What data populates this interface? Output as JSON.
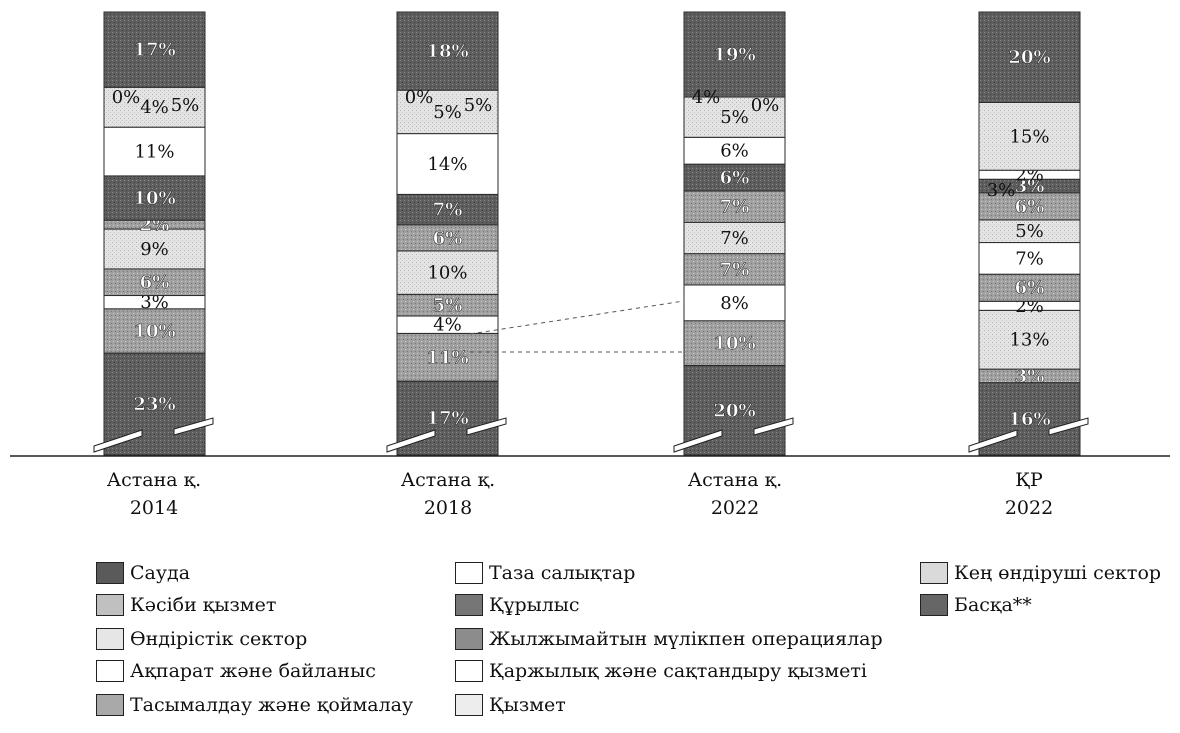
{
  "chart_data": {
    "type": "bar",
    "stacked": true,
    "normalized_to_100": true,
    "categories": [
      "Астана қ.\n2014",
      "Астана қ.\n2018",
      "Астана қ.\n2022",
      "ҚР\n2022"
    ],
    "category_lines": [
      [
        "Астана қ.",
        "2014"
      ],
      [
        "Астана қ.",
        "2018"
      ],
      [
        "Астана қ.",
        "2022"
      ],
      [
        "ҚР",
        "2022"
      ]
    ],
    "series_order_bottom_to_top": [
      "Сауда",
      "Тасымалдау және қоймалау",
      "Кең өндіруші сектор",
      "Ақпарат және байланыс",
      "Кәсіби қызмет",
      "Қаржылық және сақтандыру қызметі",
      "Өндірістік сектор",
      "Жылжымайтын мүлікпен операциялар",
      "Құрылыс",
      "Таза салықтар",
      "Қызмет",
      "Басқа**"
    ],
    "series": [
      {
        "name": "Сауда",
        "color": "#5a5a5a",
        "pattern": "dark",
        "values": [
          23,
          17,
          20,
          16
        ]
      },
      {
        "name": "Тасымалдау және қоймалау",
        "color": "#a9a9a9",
        "pattern": "medium",
        "values": [
          10,
          11,
          10,
          3
        ]
      },
      {
        "name": "Кең өндіруші сектор",
        "color": "#dadada",
        "pattern": "light",
        "values": [
          0,
          0,
          0,
          13
        ]
      },
      {
        "name": "Ақпарат және байланыс",
        "color": "#ffffff",
        "pattern": "white",
        "values": [
          3,
          4,
          8,
          2
        ]
      },
      {
        "name": "Кәсіби қызмет",
        "color": "#c0c0c0",
        "pattern": "medium",
        "values": [
          6,
          5,
          7,
          6
        ]
      },
      {
        "name": "Қаржылық және сақтандыру қызметі",
        "color": "#ffffff",
        "pattern": "white",
        "values": [
          0,
          0,
          0,
          7
        ]
      },
      {
        "name": "Өндірістік сектор",
        "color": "#e6e6e6",
        "pattern": "light",
        "values": [
          9,
          10,
          7,
          5
        ]
      },
      {
        "name": "Жылжымайтын мүлікпен операциялар",
        "color": "#8c8c8c",
        "pattern": "medium",
        "values": [
          2,
          6,
          7,
          6
        ]
      },
      {
        "name": "Құрылыс",
        "color": "#767676",
        "pattern": "dark",
        "values": [
          10,
          7,
          6,
          3
        ]
      },
      {
        "name": "Таза салықтар",
        "color": "#ffffff",
        "pattern": "white",
        "values": [
          11,
          14,
          6,
          2
        ]
      },
      {
        "name": "Қызмет",
        "color": "#ededed",
        "pattern": "light",
        "values": [
          9,
          10,
          9,
          15
        ]
      },
      {
        "name": "Басқа**",
        "color": "#666666",
        "pattern": "dark",
        "values": [
          17,
          18,
          19,
          20
        ]
      }
    ],
    "segment_labels": [
      [
        "23%",
        "10%",
        "",
        "3%",
        "6%",
        "",
        "9%",
        "2%",
        "10%",
        "11%",
        "4%",
        "17%"
      ],
      [
        "17%",
        "11%",
        "",
        "4%",
        "5%",
        "",
        "10%",
        "6%",
        "7%",
        "14%",
        "5%",
        "18%"
      ],
      [
        "20%",
        "10%",
        "",
        "8%",
        "7%",
        "",
        "7%",
        "7%",
        "6%",
        "6%",
        "5%",
        "19%"
      ],
      [
        "16%",
        "3%",
        "13%",
        "2%",
        "6%",
        "7%",
        "5%",
        "6%",
        "3%",
        "2%",
        "15%",
        "20%"
      ]
    ],
    "extra_labels": [
      [
        "0%",
        "5%"
      ],
      [
        "0%",
        "5%"
      ],
      [
        "4%",
        "0%"
      ],
      [
        "3%"
      ]
    ],
    "legend": {
      "columns": [
        [
          "Сауда",
          "Кәсіби қызмет",
          "Өндірістік сектор",
          "Ақпарат және байланыс",
          "Тасымалдау және қоймалау"
        ],
        [
          "Таза салықтар",
          "Құрылыс",
          "Жылжымайтын мүлікпен операциялар",
          "Қаржылық және сақтандыру қызметі",
          "Қызмет"
        ],
        [
          "Кең өндіруші сектор",
          "Басқа**"
        ]
      ]
    },
    "ylim": [
      0,
      100
    ],
    "grid": false,
    "axis_break": true
  }
}
